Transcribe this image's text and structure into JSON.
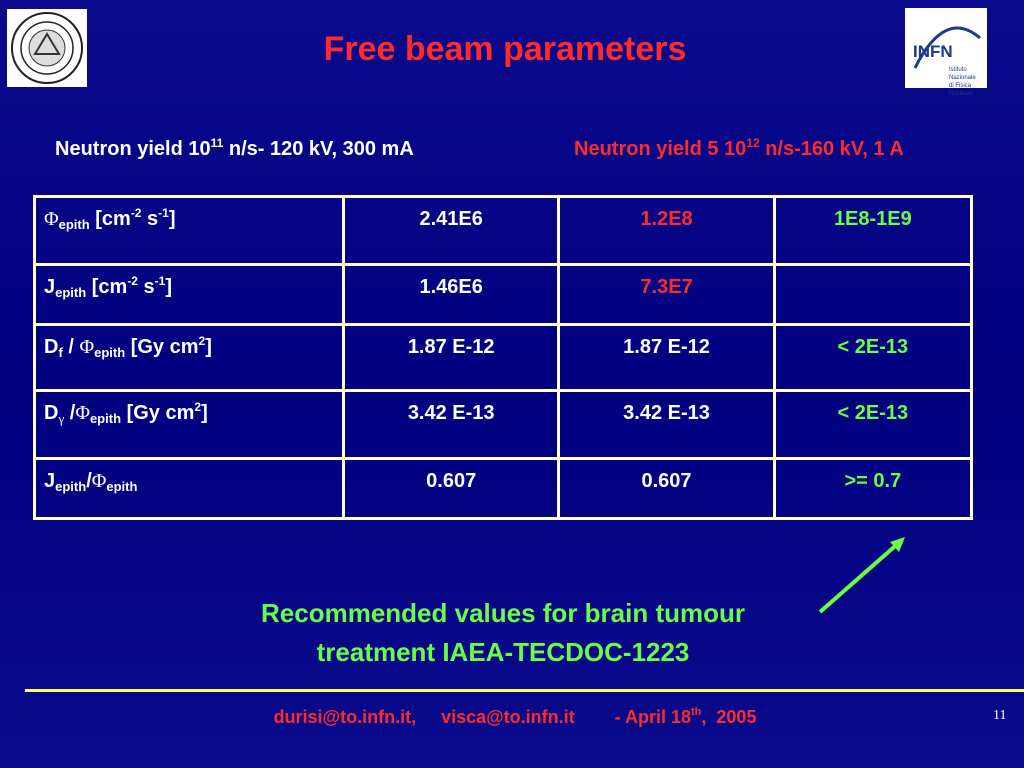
{
  "header": {
    "title": "Free beam parameters",
    "logo_right": {
      "name": "INFN",
      "subtitle": [
        "Istituto Nazionale",
        "di Fisica Nucleare"
      ]
    }
  },
  "columns": [
    [
      "Neutron yield 10",
      "11",
      " n/s- 120 kV, 300 mA"
    ],
    [
      "Neutron yield 5 10",
      "12",
      " n/s-160 kV, 1 A"
    ]
  ],
  "table": {
    "rows": [
      {
        "label": [
          "Φ",
          "epith",
          " [cm",
          "-2",
          " s",
          "-1",
          "]"
        ],
        "cells": [
          "2.41E6",
          "1.2E8",
          "1E8-1E9"
        ]
      },
      {
        "label": [
          "J",
          "epith",
          " [cm",
          "-2",
          " s",
          "-1",
          "]"
        ],
        "cells": [
          "1.46E6",
          "7.3E7"
        ]
      },
      {
        "label": [
          "D",
          "f",
          " / ",
          "Φ",
          "epith",
          " [Gy cm",
          "2",
          "]"
        ],
        "cells": [
          "1.87 E-12",
          "1.87 E-12",
          "< 2E-13"
        ]
      },
      {
        "label": [
          "D",
          "γ",
          " /",
          "Φ",
          "epith",
          " [Gy cm",
          "2",
          "]"
        ],
        "cells": [
          "3.42 E-13",
          "3.42 E-13",
          "< 2E-13"
        ]
      },
      {
        "label": [
          "J",
          "epith",
          "/",
          "Φ",
          "epith"
        ],
        "cells": [
          "0.607",
          "0.607",
          ">= 0.7"
        ]
      }
    ]
  },
  "note": [
    "Recommended values for brain tumour",
    "treatment IAEA-TECDOC-1223"
  ],
  "footer": {
    "contact": [
      "durisi@to.infn.it,     visca@to.infn.it        - April 18",
      "th",
      ",  2005"
    ],
    "page": "11"
  }
}
